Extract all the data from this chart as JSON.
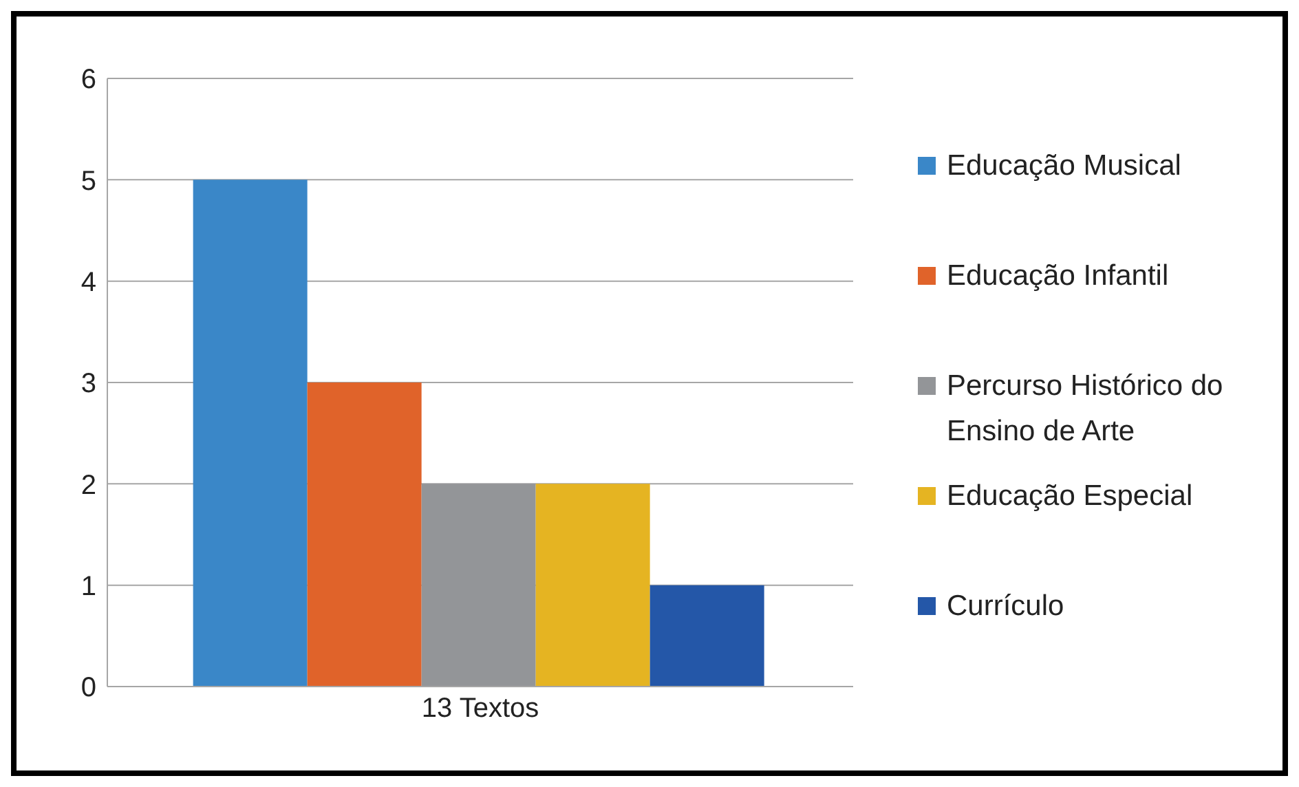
{
  "chart_data": {
    "type": "bar",
    "categories": [
      "13 Textos"
    ],
    "series": [
      {
        "name": "Educação Musical",
        "color": "#3a87c8",
        "values": [
          5
        ]
      },
      {
        "name": "Educação Infantil",
        "color": "#e0632a",
        "values": [
          3
        ]
      },
      {
        "name": "Percurso Histórico do Ensino de Arte",
        "color": "#939598",
        "values": [
          2
        ]
      },
      {
        "name": "Educação Especial",
        "color": "#e5b422",
        "values": [
          2
        ]
      },
      {
        "name": "Currículo",
        "color": "#2457a8",
        "values": [
          1
        ]
      }
    ],
    "ylim": [
      0,
      6
    ],
    "yticks": [
      0,
      1,
      2,
      3,
      4,
      5,
      6
    ],
    "grid": "y",
    "legend": "right"
  }
}
